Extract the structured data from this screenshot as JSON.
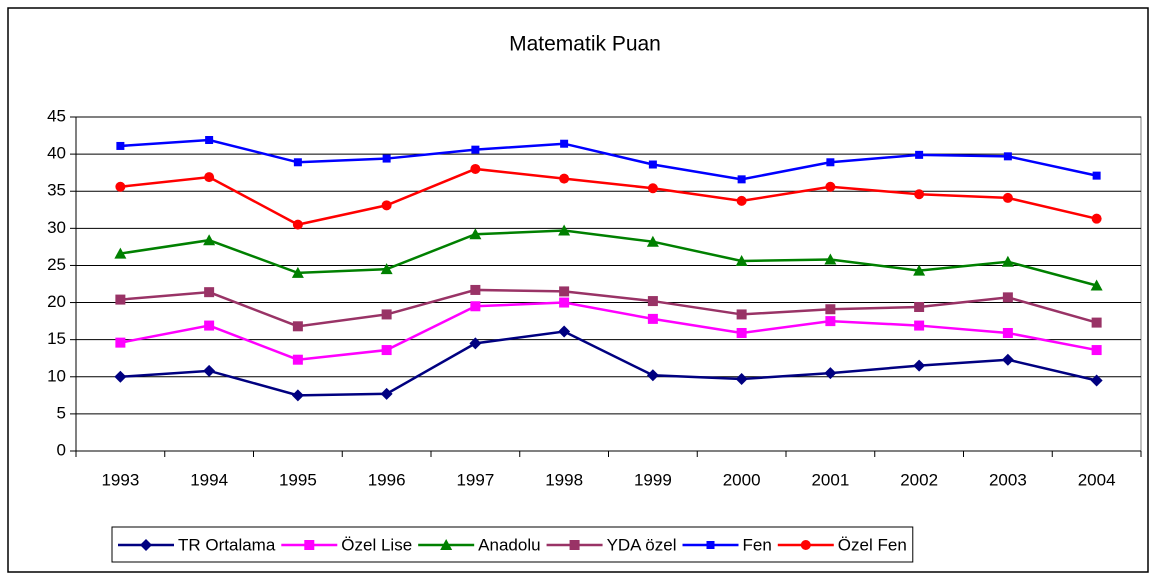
{
  "chart_data": {
    "type": "line",
    "title": "Matematik Puan",
    "categories": [
      "1993",
      "1994",
      "1995",
      "1996",
      "1997",
      "1998",
      "1999",
      "2000",
      "2001",
      "2002",
      "2003",
      "2004"
    ],
    "ylim": [
      0,
      45
    ],
    "yticks": [
      0,
      5,
      10,
      15,
      20,
      25,
      30,
      35,
      40,
      45
    ],
    "grid": true,
    "legend": "bottom",
    "series": [
      {
        "name": "TR Ortalama",
        "color": "#000080",
        "marker": "diamond",
        "values": [
          10,
          10.8,
          7.5,
          7.7,
          14.5,
          16.1,
          10.2,
          9.7,
          10.5,
          11.5,
          12.3,
          9.5
        ]
      },
      {
        "name": "Özel Lise",
        "color": "#ff00ff",
        "marker": "square",
        "values": [
          14.6,
          16.9,
          12.3,
          13.6,
          19.5,
          20,
          17.8,
          15.9,
          17.5,
          16.9,
          15.9,
          13.6
        ]
      },
      {
        "name": "Anadolu",
        "color": "#008000",
        "marker": "triangle",
        "values": [
          26.6,
          28.4,
          24,
          24.5,
          29.2,
          29.7,
          28.2,
          25.6,
          25.8,
          24.3,
          25.5,
          22.3
        ]
      },
      {
        "name": "YDA özel",
        "color": "#993366",
        "marker": "square",
        "values": [
          20.4,
          21.4,
          16.8,
          18.4,
          21.7,
          21.5,
          20.2,
          18.4,
          19.1,
          19.4,
          20.7,
          17.3
        ]
      },
      {
        "name": "Fen",
        "color": "#0000ff",
        "marker": "smallsquare",
        "values": [
          41.1,
          41.9,
          38.9,
          39.4,
          40.6,
          41.4,
          38.6,
          36.6,
          38.9,
          39.9,
          39.7,
          37.1
        ]
      },
      {
        "name": "Özel Fen",
        "color": "#ff0000",
        "marker": "circle",
        "values": [
          35.6,
          36.9,
          30.5,
          33.1,
          38,
          36.7,
          35.4,
          33.7,
          35.6,
          34.6,
          34.1,
          31.3
        ]
      }
    ]
  }
}
